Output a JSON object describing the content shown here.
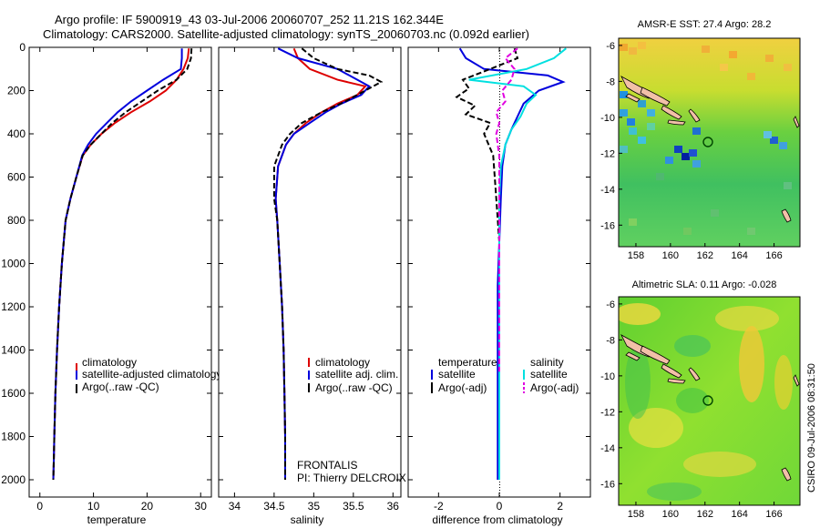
{
  "header": {
    "title_line1": "Argo profile: IF 5900919_43 03-Jul-2006 20060707_252 11.21S 162.344E",
    "title_line2": "Climatology: CARS2000. Satellite-adjusted climatology: synTS_20060703.nc (0.092d earlier)"
  },
  "footer": {
    "csiro_stamp": "CSIRO 09-Jul-2006 08:31:50",
    "project": "FRONTALIS",
    "pi": "PI: Thierry DELCROIX"
  },
  "colors": {
    "climatology": "#dd0000",
    "satellite": "#0000dd",
    "argo": "#000000",
    "satellite_salinity_diff": "#00e0e0",
    "argo_salinity_diff": "#e000e0"
  },
  "chart_data": [
    {
      "type": "line",
      "xlabel": "temperature",
      "ylabel": "",
      "xlim": [
        -2,
        32
      ],
      "ylim": [
        2080,
        0
      ],
      "xticks": [
        "0",
        "10",
        "20",
        "30"
      ],
      "yticks": [
        "0",
        "200",
        "400",
        "600",
        "800",
        "1000",
        "1200",
        "1400",
        "1600",
        "1800",
        "2000"
      ],
      "legend": [
        "climatology",
        "satellite-adjusted climatology",
        "Argo(..raw -QC)"
      ],
      "legend_position": "lower-middle",
      "series": [
        {
          "name": "climatology",
          "style": "solid",
          "color": "#dd0000",
          "x": [
            27.8,
            27.6,
            26.8,
            25.5,
            23.5,
            20.5,
            17,
            14,
            11.5,
            9.5,
            8,
            6.8,
            5.7,
            4.8,
            4.1,
            3.6,
            3.2,
            2.9,
            2.7,
            2.6,
            2.5
          ],
          "y": [
            5,
            50,
            100,
            150,
            200,
            250,
            300,
            350,
            400,
            450,
            500,
            600,
            700,
            800,
            1000,
            1200,
            1400,
            1600,
            1800,
            1900,
            2000
          ]
        },
        {
          "name": "satellite-adjusted climatology",
          "style": "solid",
          "color": "#0000dd",
          "x": [
            26.5,
            26.5,
            26.3,
            23,
            20,
            17,
            14.5,
            12.5,
            10.5,
            9,
            7.9,
            6.8,
            5.7,
            4.8,
            4.1,
            3.6,
            3.2,
            2.9,
            2.7,
            2.6,
            2.5
          ],
          "y": [
            5,
            50,
            100,
            150,
            200,
            250,
            300,
            350,
            400,
            450,
            500,
            600,
            700,
            800,
            1000,
            1200,
            1400,
            1600,
            1800,
            1900,
            2000
          ]
        },
        {
          "name": "Argo(..raw -QC)",
          "style": "dashed",
          "color": "#000000",
          "x": [
            28.3,
            28.2,
            27.5,
            25.5,
            22,
            19,
            16,
            13.5,
            11.5,
            9.5,
            8,
            6.8,
            5.7,
            4.8,
            4.1,
            3.6,
            3.2,
            2.9,
            2.7,
            2.6,
            2.5
          ],
          "y": [
            5,
            50,
            100,
            150,
            200,
            250,
            300,
            350,
            400,
            450,
            500,
            600,
            700,
            800,
            1000,
            1200,
            1400,
            1600,
            1800,
            1900,
            2000
          ]
        }
      ]
    },
    {
      "type": "line",
      "xlabel": "salinity",
      "ylabel": "",
      "xlim": [
        33.8,
        36.1
      ],
      "ylim": [
        2080,
        0
      ],
      "xticks": [
        "34",
        "34.5",
        "35",
        "35.5",
        "36"
      ],
      "legend": [
        "climatology",
        "satellite adj. clim.",
        "Argo(..raw -QC)"
      ],
      "legend_position": "lower-middle",
      "series": [
        {
          "name": "climatology",
          "style": "solid",
          "color": "#dd0000",
          "x": [
            34.75,
            34.8,
            34.95,
            35.3,
            35.65,
            35.55,
            35.3,
            35.1,
            34.9,
            34.75,
            34.65,
            34.55,
            34.52,
            34.54,
            34.57,
            34.6,
            34.62,
            34.63,
            34.64,
            34.64
          ],
          "y": [
            5,
            50,
            100,
            150,
            180,
            220,
            260,
            300,
            350,
            400,
            450,
            550,
            700,
            800,
            1000,
            1200,
            1400,
            1600,
            1800,
            2000
          ]
        },
        {
          "name": "satellite adj. clim.",
          "style": "solid",
          "color": "#0000dd",
          "x": [
            34.55,
            34.8,
            35.3,
            35.55,
            35.7,
            35.6,
            35.35,
            35.15,
            34.95,
            34.75,
            34.65,
            34.55,
            34.52,
            34.54,
            34.57,
            34.6,
            34.62,
            34.63,
            34.64,
            34.64
          ],
          "y": [
            5,
            50,
            100,
            150,
            180,
            220,
            260,
            300,
            350,
            400,
            450,
            550,
            700,
            800,
            1000,
            1200,
            1400,
            1600,
            1800,
            2000
          ]
        },
        {
          "name": "Argo(..raw -QC)",
          "style": "dashed",
          "color": "#000000",
          "x": [
            34.85,
            35.0,
            35.3,
            35.7,
            35.85,
            35.6,
            35.4,
            35.1,
            34.85,
            34.7,
            34.6,
            34.5,
            34.5,
            34.54,
            34.57,
            34.6,
            34.62,
            34.63,
            34.64,
            34.64
          ],
          "y": [
            5,
            50,
            100,
            130,
            160,
            210,
            250,
            300,
            350,
            400,
            450,
            550,
            700,
            800,
            1000,
            1200,
            1400,
            1600,
            1800,
            2000
          ]
        }
      ]
    },
    {
      "type": "line",
      "xlabel": "difference from climatology",
      "ylabel": "",
      "xlim": [
        -3,
        3
      ],
      "ylim": [
        2080,
        0
      ],
      "xticks": [
        "-2",
        "0",
        "2"
      ],
      "legend": [
        "temperature",
        "satellite",
        "Argo(-adj)",
        "salinity",
        "satellite",
        "Argo(-adj)"
      ],
      "legend_position": "lower",
      "series": [
        {
          "name": "temperature satellite",
          "style": "solid",
          "color": "#0000dd",
          "x": [
            -1.3,
            -1.1,
            -0.5,
            1.6,
            2.1,
            1.3,
            0.8,
            0.6,
            0.4,
            0.2,
            0.1,
            0.05,
            0.0,
            -0.05,
            -0.05,
            -0.05,
            -0.05,
            -0.05,
            -0.05
          ],
          "y": [
            5,
            50,
            100,
            130,
            160,
            200,
            260,
            320,
            380,
            450,
            550,
            700,
            900,
            1100,
            1300,
            1500,
            1700,
            1850,
            2000
          ]
        },
        {
          "name": "temperature Argo(-adj)",
          "style": "dashed",
          "color": "#000000",
          "x": [
            0.5,
            0.6,
            -0.3,
            -1.2,
            -1.0,
            -1.4,
            -0.8,
            -1.1,
            -0.3,
            -0.5,
            -0.2,
            -0.1,
            0.0,
            0.0,
            0.0,
            0.0,
            0.0,
            0.0
          ],
          "y": [
            5,
            50,
            100,
            150,
            190,
            230,
            270,
            310,
            350,
            400,
            500,
            700,
            900,
            1100,
            1300,
            1500,
            1700,
            2000
          ]
        },
        {
          "name": "salinity satellite",
          "style": "solid",
          "color": "#00e0e0",
          "x": [
            2.2,
            1.8,
            0.9,
            -1.0,
            0.8,
            1.2,
            0.9,
            0.7,
            0.4,
            0.2,
            0.05,
            0.0,
            0.0,
            0.0,
            0.0,
            0.0,
            0.0
          ],
          "y": [
            5,
            50,
            100,
            150,
            180,
            220,
            260,
            320,
            380,
            450,
            550,
            700,
            900,
            1100,
            1400,
            1700,
            2000
          ]
        },
        {
          "name": "salinity Argo(-adj)",
          "style": "dashed",
          "color": "#e000e0",
          "x": [
            0.6,
            0.2,
            0.5,
            0.4,
            0.1,
            0.2,
            -0.1,
            0.0,
            -0.1,
            -0.05,
            0.0,
            0.0,
            0.0,
            0.0,
            0.0
          ],
          "y": [
            5,
            50,
            100,
            150,
            200,
            250,
            300,
            350,
            400,
            450,
            500,
            600,
            800,
            1200,
            1500
          ]
        }
      ]
    },
    {
      "type": "heatmap",
      "title": "AMSR-E SST: 27.4 Argo: 28.2",
      "xlim": [
        157,
        167.5
      ],
      "ylim": [
        -17.2,
        -5.6
      ],
      "xticks": [
        "158",
        "160",
        "162",
        "164",
        "166"
      ],
      "yticks": [
        "-6",
        "-8",
        "-10",
        "-12",
        "-14",
        "-16"
      ],
      "marker": {
        "lon": 162.344,
        "lat": -11.21
      }
    },
    {
      "type": "heatmap",
      "title": "Altimetric SLA: 0.11 Argo: -0.028",
      "xlim": [
        157,
        167.5
      ],
      "ylim": [
        -17.2,
        -5.6
      ],
      "xticks": [
        "158",
        "160",
        "162",
        "164",
        "166"
      ],
      "yticks": [
        "-6",
        "-8",
        "-10",
        "-12",
        "-14",
        "-16"
      ],
      "marker": {
        "lon": 162.344,
        "lat": -11.21
      }
    }
  ]
}
